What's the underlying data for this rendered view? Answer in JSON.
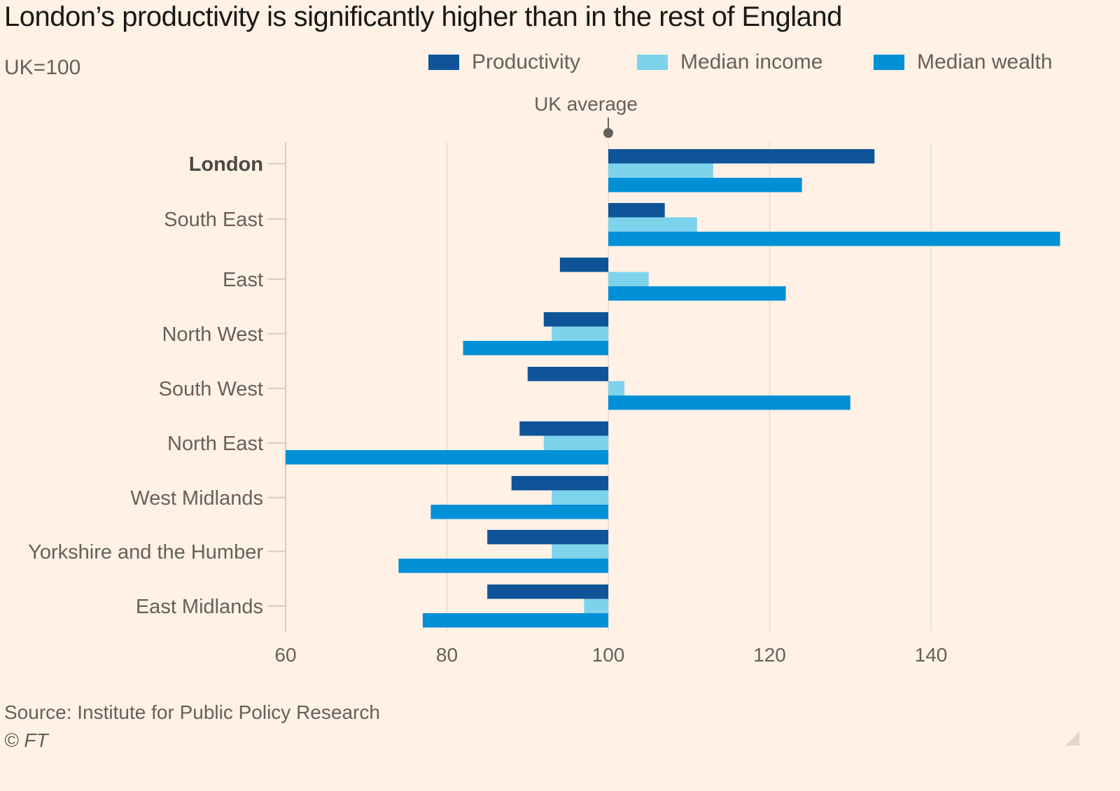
{
  "chart_data": {
    "type": "bar",
    "orientation": "horizontal",
    "title": "London’s productivity is significantly higher than in the rest of England",
    "subtitle": "UK=100",
    "xlabel": "",
    "ylabel": "",
    "baseline": 100,
    "xlim": [
      60,
      156
    ],
    "xticks": [
      60,
      80,
      100,
      120,
      140
    ],
    "grid": true,
    "legend_position": "top-right",
    "categories": [
      "London",
      "South East",
      "East",
      "North West",
      "South West",
      "North East",
      "West Midlands",
      "Yorkshire and the Humber",
      "East Midlands"
    ],
    "highlight_category": "London",
    "series": [
      {
        "name": "Productivity",
        "color": "#0f5499",
        "values": [
          133,
          107,
          94,
          92,
          90,
          89,
          88,
          85,
          85
        ]
      },
      {
        "name": "Median income",
        "color": "#7ed3ec",
        "values": [
          113,
          111,
          105,
          93,
          102,
          92,
          93,
          93,
          97
        ]
      },
      {
        "name": "Median wealth",
        "color": "#0190d6",
        "values": [
          124,
          156,
          122,
          82,
          130,
          60,
          78,
          74,
          77
        ]
      }
    ],
    "annotations": [
      {
        "text": "UK average",
        "x": 100
      }
    ]
  },
  "footer": {
    "source": "Source: Institute for Public Policy Research",
    "copyright": "© FT"
  }
}
